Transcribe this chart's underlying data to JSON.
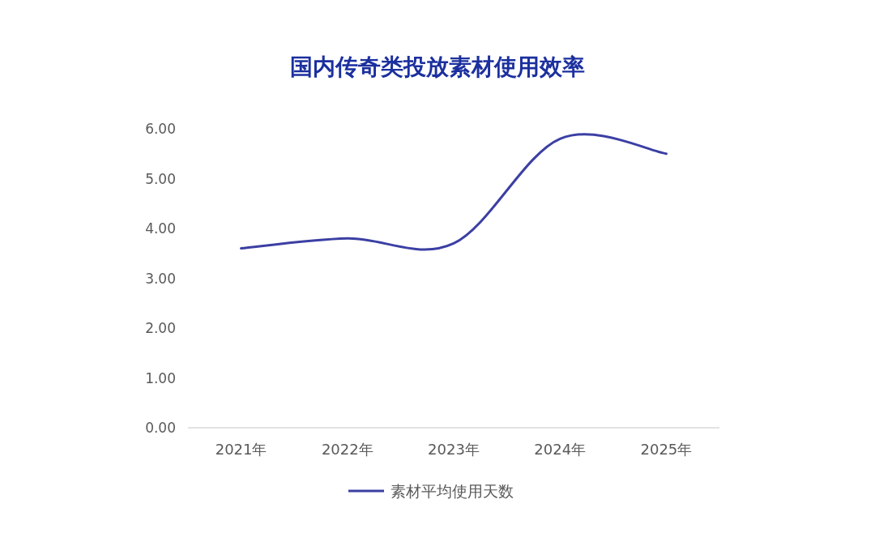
{
  "chart_data": {
    "type": "line",
    "title": "国内传奇类投放素材使用效率",
    "categories": [
      "2021年",
      "2022年",
      "2023年",
      "2024年",
      "2025年"
    ],
    "series": [
      {
        "name": "素材平均使用天数",
        "color": "#3b3fa3",
        "values": [
          3.6,
          3.8,
          3.7,
          5.8,
          5.5
        ]
      }
    ],
    "ylim": [
      0,
      6
    ],
    "yticks": [
      {
        "value": 0,
        "label": "0.00"
      },
      {
        "value": 1,
        "label": "1.00"
      },
      {
        "value": 2,
        "label": "2.00"
      },
      {
        "value": 3,
        "label": "3.00"
      },
      {
        "value": 4,
        "label": "4.00"
      },
      {
        "value": 5,
        "label": "5.00"
      },
      {
        "value": 6,
        "label": "6.00"
      }
    ],
    "grid": false,
    "legend": "bottom",
    "marker": "none",
    "line_style": "solid"
  }
}
